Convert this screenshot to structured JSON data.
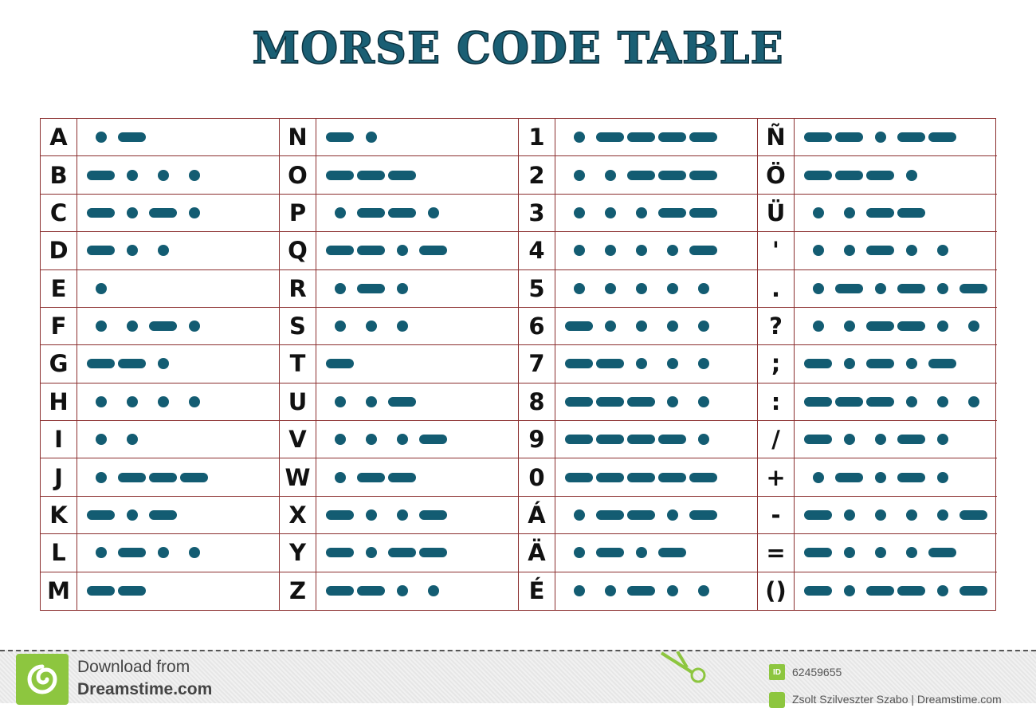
{
  "title": "MORSE CODE TABLE",
  "colors": {
    "symbol": "#135c72",
    "grid": "#8b2f2f",
    "title": "#1a5f74",
    "brand": "#8dc63f"
  },
  "columns": [
    [
      [
        "A",
        ".-"
      ],
      [
        "B",
        "-..."
      ],
      [
        "C",
        "-.-."
      ],
      [
        "D",
        "-.."
      ],
      [
        "E",
        "."
      ],
      [
        "F",
        "..-."
      ],
      [
        "G",
        "--."
      ],
      [
        "H",
        "...."
      ],
      [
        "I",
        ".."
      ],
      [
        "J",
        ".---"
      ],
      [
        "K",
        "-.-"
      ],
      [
        "L",
        ".-.."
      ],
      [
        "M",
        "--"
      ]
    ],
    [
      [
        "N",
        "-."
      ],
      [
        "O",
        "---"
      ],
      [
        "P",
        ".--."
      ],
      [
        "Q",
        "--.-"
      ],
      [
        "R",
        ".-."
      ],
      [
        "S",
        "..."
      ],
      [
        "T",
        "-"
      ],
      [
        "U",
        "..-"
      ],
      [
        "V",
        "...-"
      ],
      [
        "W",
        ".--"
      ],
      [
        "X",
        "-..-"
      ],
      [
        "Y",
        "-.--"
      ],
      [
        "Z",
        "--.."
      ]
    ],
    [
      [
        "1",
        ".----"
      ],
      [
        "2",
        "..---"
      ],
      [
        "3",
        "...--"
      ],
      [
        "4",
        "....-"
      ],
      [
        "5",
        "....."
      ],
      [
        "6",
        "-...."
      ],
      [
        "7",
        "--..."
      ],
      [
        "8",
        "---.."
      ],
      [
        "9",
        "----."
      ],
      [
        "0",
        "-----"
      ],
      [
        "Á",
        ".--.-"
      ],
      [
        "Ä",
        ".-.-"
      ],
      [
        "É",
        "..-.."
      ]
    ],
    [
      [
        "Ñ",
        "--.--"
      ],
      [
        "Ö",
        "---."
      ],
      [
        "Ü",
        "..--"
      ],
      [
        "'",
        "..-.."
      ],
      [
        ".",
        ".-.-.-"
      ],
      [
        "?",
        "..--.."
      ],
      [
        ";",
        "-.-.-"
      ],
      [
        ":",
        "---..."
      ],
      [
        "/",
        "-..-."
      ],
      [
        "+",
        ".-.-."
      ],
      [
        "-",
        "-....-"
      ],
      [
        "=",
        "-...-"
      ],
      [
        "()",
        "-.--.-"
      ]
    ]
  ],
  "footer": {
    "download_line1": "Download from",
    "download_line2": "Dreamstime.com",
    "id_badge": "ID",
    "image_id": "62459655",
    "author": "Zsolt Szilveszter Szabo | Dreamstime.com"
  },
  "icons": {
    "logo": "dreamstime-spiral-logo",
    "scissors": "scissors-icon"
  }
}
